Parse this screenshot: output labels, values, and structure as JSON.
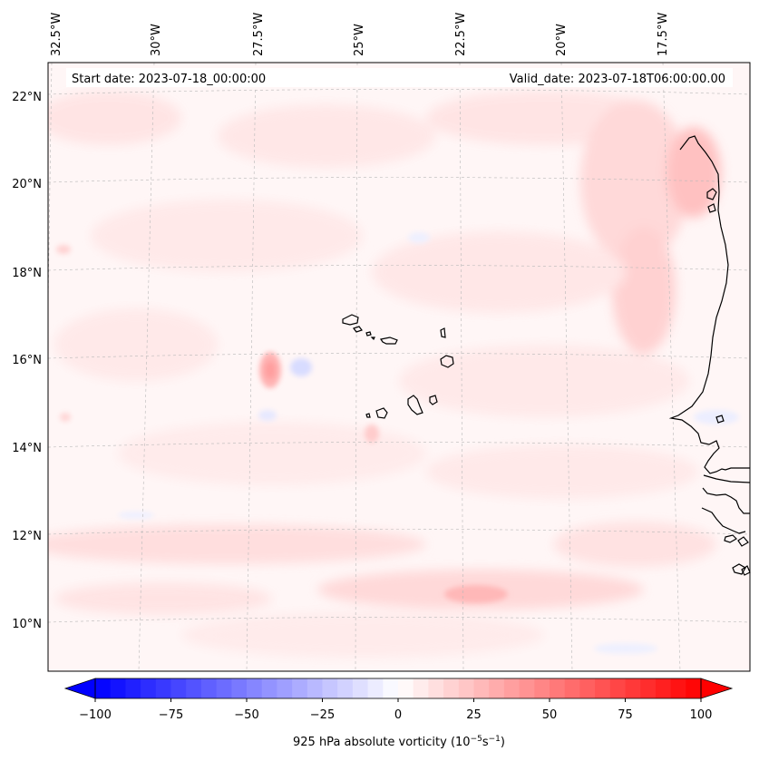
{
  "header": {
    "start_date": "Start date: 2023-07-18_00:00:00",
    "valid_date": "Valid_date: 2023-07-18T06:00:00.00"
  },
  "lon_labels": [
    "32.5°W",
    "30°W",
    "27.5°W",
    "25°W",
    "22.5°W",
    "20°W",
    "17.5°W"
  ],
  "lat_labels": [
    "22°N",
    "20°N",
    "18°N",
    "16°N",
    "14°N",
    "12°N",
    "10°N"
  ],
  "colorbar": {
    "ticks": [
      "−100",
      "−75",
      "−50",
      "−25",
      "0",
      "25",
      "50",
      "75",
      "100"
    ],
    "label_main": "925 hPa absolute vorticity (10",
    "label_exp1": "−5",
    "label_mid": "s",
    "label_exp2": "−1",
    "label_end": ")",
    "min": -100,
    "max": 100,
    "steps": 40,
    "negative_color": "#0000ff",
    "positive_color": "#ff0000"
  },
  "colors": {
    "land_outline": "#000000",
    "grid": "#b0b0b0",
    "field_base": "#fff5f5"
  }
}
